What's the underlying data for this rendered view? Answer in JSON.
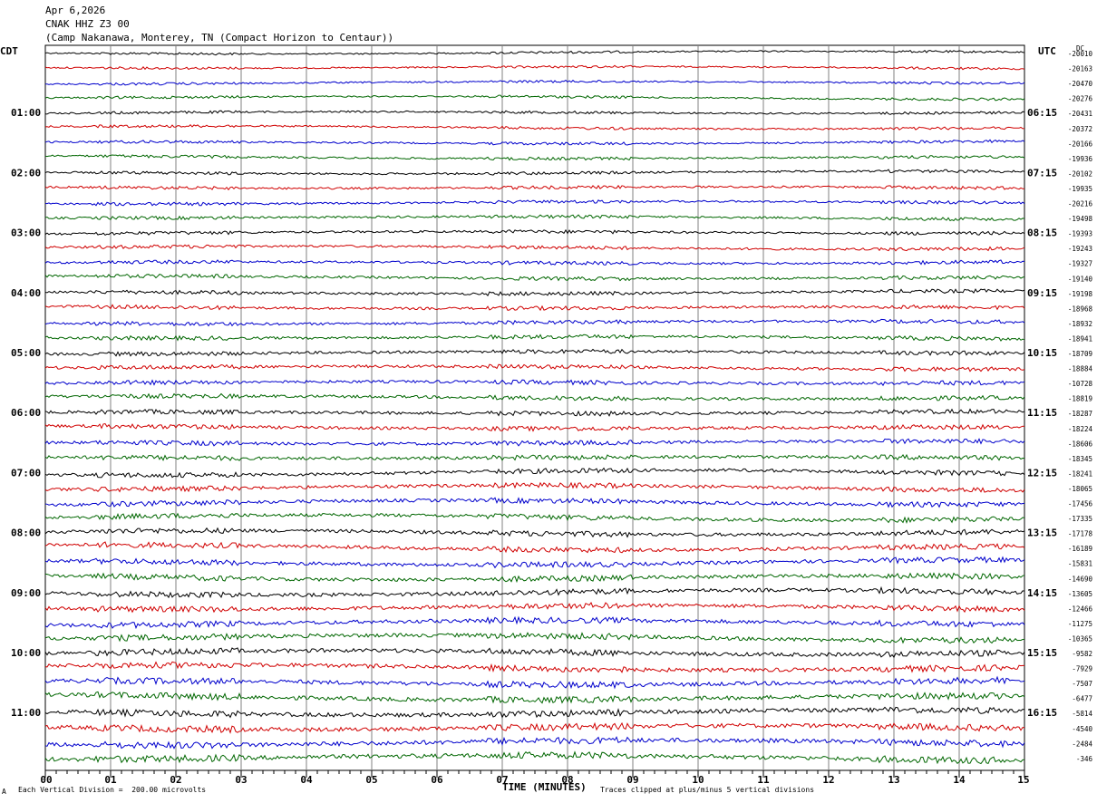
{
  "header": {
    "date": "Apr 6,2026",
    "station": "CNAK HHZ Z3 00",
    "location": "(Camp Nakanawa, Monterey, TN (Compact Horizon to Centaur))"
  },
  "left_timezone": "CDT",
  "right_timezone": "UTC",
  "dc_label": "DC",
  "footer": {
    "scale_note": "Each Vertical Division =  200.00 microvolts",
    "mark": "A",
    "xlabel": "TIME (MINUTES)",
    "clip_note": "Traces clipped at plus/minus 5 vertical divisions"
  },
  "colors": {
    "trace_cycle": [
      "#000000",
      "#d00000",
      "#0000cc",
      "#006600"
    ],
    "grid": "#808080"
  },
  "chart_data": {
    "type": "line",
    "title": "",
    "xlabel": "TIME (MINUTES)",
    "xlim": [
      0,
      15
    ],
    "x_ticks": [
      "00",
      "01",
      "02",
      "03",
      "04",
      "05",
      "06",
      "07",
      "08",
      "09",
      "10",
      "11",
      "12",
      "13",
      "14",
      "15"
    ],
    "left_hour_labels": [
      "01:00",
      "02:00",
      "03:00",
      "04:00",
      "05:00",
      "06:00",
      "07:00",
      "08:00",
      "09:00",
      "10:00",
      "11:00"
    ],
    "right_hour_labels": [
      "06:15",
      "07:15",
      "08:15",
      "09:15",
      "10:15",
      "11:15",
      "12:15",
      "13:15",
      "14:15",
      "15:15",
      "16:15"
    ],
    "trace_count": 48,
    "dc_offsets": [
      -20010,
      -20163,
      -20470,
      -20276,
      -20431,
      -20372,
      -20166,
      -19936,
      -20102,
      -19935,
      -20216,
      -19498,
      -19393,
      -19243,
      -19327,
      -19140,
      -19198,
      -18968,
      -18932,
      -18941,
      -18709,
      -18884,
      -10728,
      -18819,
      -18287,
      -18224,
      -18606,
      -18345,
      -18241,
      -18065,
      -17456,
      -17335,
      -17178,
      -16189,
      -15831,
      -14690,
      -13605,
      -12466,
      -11275,
      -10365,
      -9582,
      -7929,
      -7507,
      -6477,
      -5814,
      -4540,
      -2484,
      -346
    ]
  }
}
